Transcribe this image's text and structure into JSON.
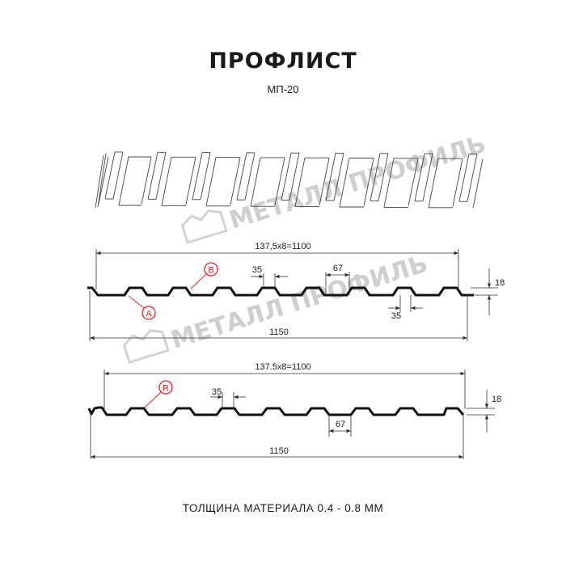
{
  "header": {
    "title": "ПРОФЛИСТ",
    "subtitle": "МП-20"
  },
  "watermark": {
    "text": "МЕТАЛЛ ПРОФИЛЬ"
  },
  "colors": {
    "profile": "#111111",
    "dimension": "#333333",
    "marker": "#e31e24",
    "watermark": "#cfcfcf"
  },
  "profile_top": {
    "pitch_label": "137,5x8=1100",
    "width_label": "1150",
    "crest_label": "35",
    "trough_label": "67",
    "bottom_crest_label": "35",
    "height_label": "18",
    "markers": [
      "B",
      "A"
    ]
  },
  "profile_bottom": {
    "pitch_label": "137.5x8=1100",
    "width_label": "1150",
    "crest_label": "35",
    "trough_label": "67",
    "height_label": "18",
    "markers": [
      "R"
    ]
  },
  "footer": {
    "thickness": "ТОЛЩИНА МАТЕРИАЛА 0.4 - 0.8 ММ"
  }
}
